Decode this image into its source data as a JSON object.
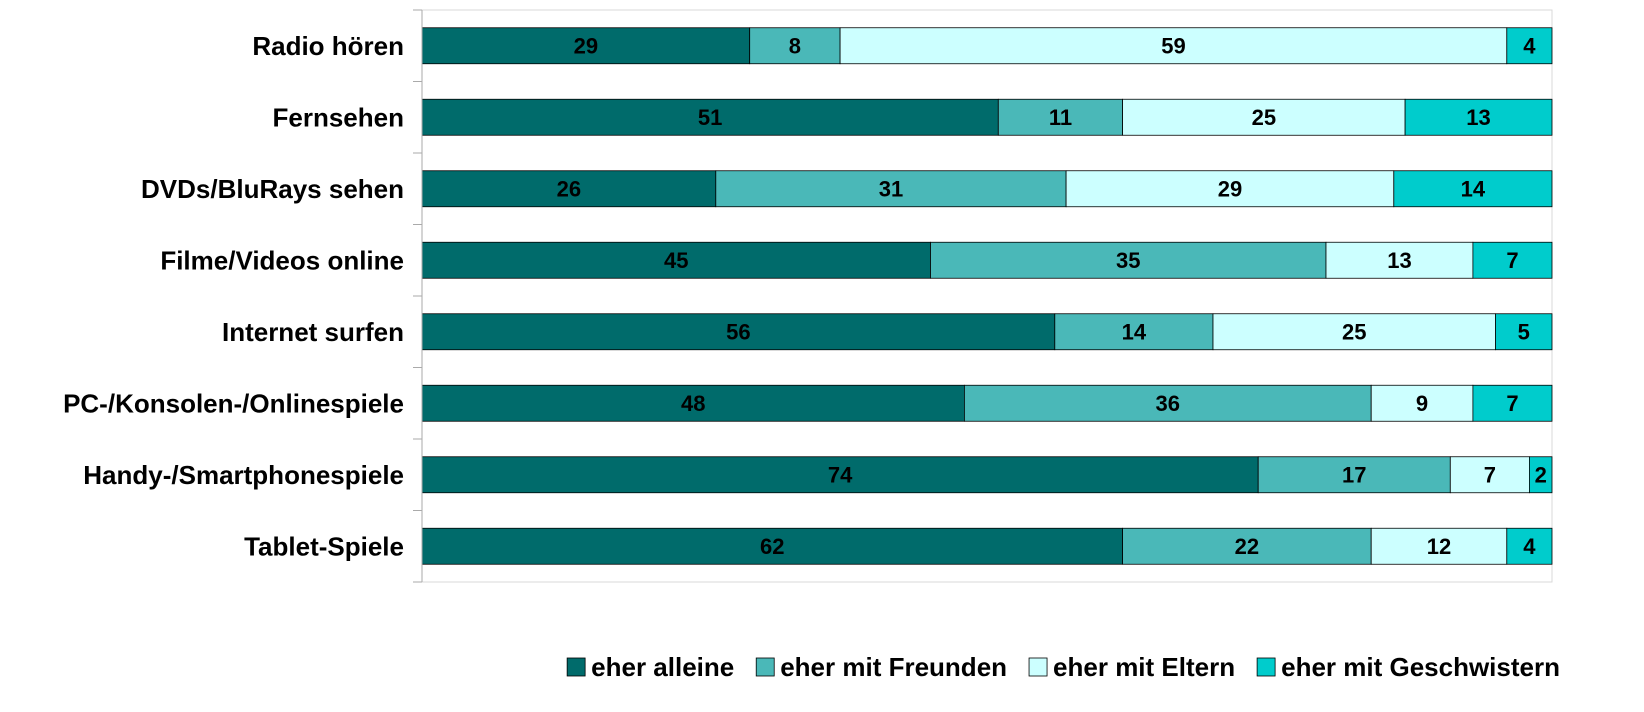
{
  "chart_data": {
    "type": "stacked-bar-horizontal",
    "categories": [
      "Radio hören",
      "Fernsehen",
      "DVDs/BluRays sehen",
      "Filme/Videos online",
      "Internet surfen",
      "PC-/Konsolen-/Onlinespiele",
      "Handy-/Smartphonespiele",
      "Tablet-Spiele"
    ],
    "series": [
      {
        "name": "eher alleine",
        "color": "#006b6b",
        "values": [
          29,
          51,
          26,
          45,
          56,
          48,
          74,
          62
        ]
      },
      {
        "name": "eher mit Freunden",
        "color": "#4ab8b8",
        "values": [
          8,
          11,
          31,
          35,
          14,
          36,
          17,
          22
        ]
      },
      {
        "name": "eher mit Eltern",
        "color": "#ccffff",
        "values": [
          59,
          25,
          29,
          13,
          25,
          9,
          7,
          12
        ]
      },
      {
        "name": "eher mit Geschwistern",
        "color": "#00cccc",
        "values": [
          4,
          13,
          14,
          7,
          5,
          7,
          2,
          4
        ]
      }
    ],
    "xlim": [
      0,
      100
    ],
    "legend": "bottom"
  }
}
